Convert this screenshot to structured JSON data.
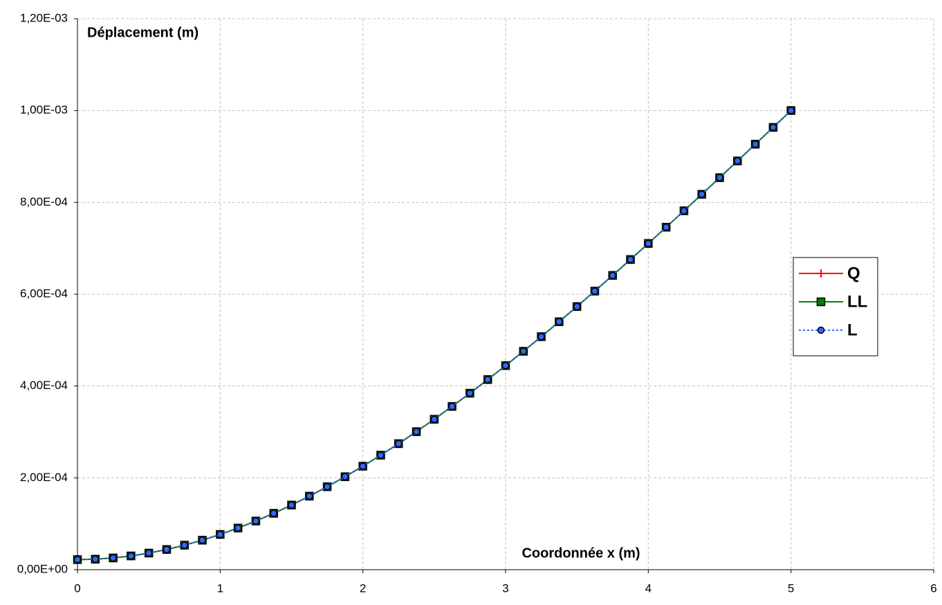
{
  "chart_data": {
    "type": "line",
    "x_label": "Coordonnée x (m)",
    "y_label": "Déplacement (m)",
    "x": [
      0,
      0.125,
      0.25,
      0.375,
      0.5,
      0.625,
      0.75,
      0.875,
      1,
      1.125,
      1.25,
      1.375,
      1.5,
      1.625,
      1.75,
      1.875,
      2,
      2.125,
      2.25,
      2.375,
      2.5,
      2.625,
      2.75,
      2.875,
      3,
      3.125,
      3.25,
      3.375,
      3.5,
      3.625,
      3.75,
      3.875,
      4,
      4.125,
      4.25,
      4.375,
      4.5,
      4.625,
      4.75,
      4.875,
      5
    ],
    "series": [
      {
        "name": "Q",
        "color": "#ff0000",
        "marker": "plus",
        "line": "solid",
        "values": [
          2.2e-05,
          2.29e-05,
          2.56e-05,
          3e-05,
          3.62e-05,
          4.4e-05,
          5.34e-05,
          6.43e-05,
          7.68e-05,
          9.07e-05,
          0.000106,
          0.0001228,
          0.0001408,
          0.0001602,
          0.0001807,
          0.0002025,
          0.0002254,
          0.0002494,
          0.0002745,
          0.0003006,
          0.0003276,
          0.0003556,
          0.0003844,
          0.0004141,
          0.0004445,
          0.0004757,
          0.0005075,
          0.00054,
          0.0005731,
          0.0006067,
          0.0006409,
          0.0006755,
          0.0007105,
          0.0007459,
          0.0007816,
          0.0008176,
          0.0008538,
          0.0008902,
          0.0009267,
          0.0009633,
          0.001
        ]
      },
      {
        "name": "LL",
        "color": "#008000",
        "marker": "square",
        "line": "solid",
        "values": [
          2.2e-05,
          2.29e-05,
          2.56e-05,
          3e-05,
          3.62e-05,
          4.4e-05,
          5.34e-05,
          6.43e-05,
          7.68e-05,
          9.07e-05,
          0.000106,
          0.0001228,
          0.0001408,
          0.0001602,
          0.0001807,
          0.0002025,
          0.0002254,
          0.0002494,
          0.0002745,
          0.0003006,
          0.0003276,
          0.0003556,
          0.0003844,
          0.0004141,
          0.0004445,
          0.0004757,
          0.0005075,
          0.00054,
          0.0005731,
          0.0006067,
          0.0006409,
          0.0006755,
          0.0007105,
          0.0007459,
          0.0007816,
          0.0008176,
          0.0008538,
          0.0008902,
          0.0009267,
          0.0009633,
          0.001
        ]
      },
      {
        "name": "L",
        "color": "#3366ff",
        "marker": "circle",
        "line": "dotted",
        "values": [
          2.2e-05,
          2.29e-05,
          2.56e-05,
          3e-05,
          3.62e-05,
          4.4e-05,
          5.34e-05,
          6.43e-05,
          7.68e-05,
          9.07e-05,
          0.000106,
          0.0001228,
          0.0001408,
          0.0001602,
          0.0001807,
          0.0002025,
          0.0002254,
          0.0002494,
          0.0002745,
          0.0003006,
          0.0003276,
          0.0003556,
          0.0003844,
          0.0004141,
          0.0004445,
          0.0004757,
          0.0005075,
          0.00054,
          0.0005731,
          0.0006067,
          0.0006409,
          0.0006755,
          0.0007105,
          0.0007459,
          0.0007816,
          0.0008176,
          0.0008538,
          0.0008902,
          0.0009267,
          0.0009633,
          0.001
        ]
      }
    ],
    "xlim": [
      0,
      6
    ],
    "xticks": [
      0,
      1,
      2,
      3,
      4,
      5,
      6
    ],
    "ylim": [
      0,
      0.0012
    ],
    "yticks": [
      {
        "value": 0,
        "label": "0,00E+00"
      },
      {
        "value": 0.0002,
        "label": "2,00E-04"
      },
      {
        "value": 0.0004,
        "label": "4,00E-04"
      },
      {
        "value": 0.0006,
        "label": "6,00E-04"
      },
      {
        "value": 0.0008,
        "label": "8,00E-04"
      },
      {
        "value": 0.001,
        "label": "1,00E-03"
      },
      {
        "value": 0.0012,
        "label": "1,20E-03"
      }
    ],
    "grid": true,
    "legend": "right"
  }
}
